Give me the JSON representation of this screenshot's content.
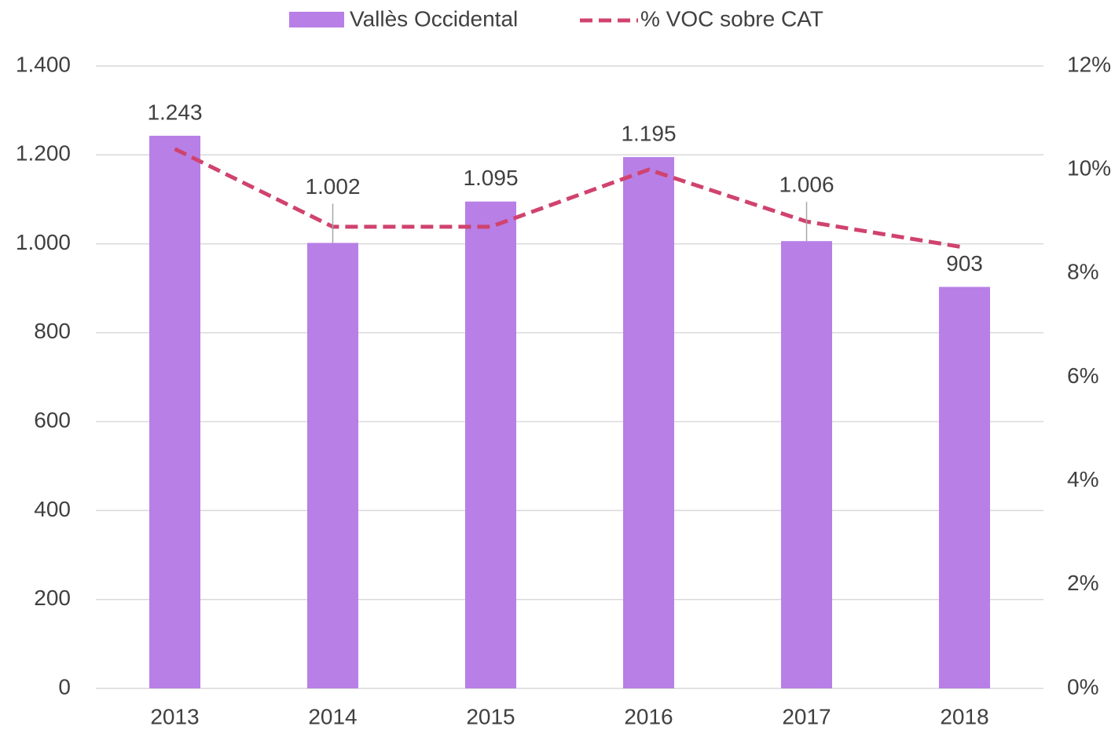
{
  "chart_data": {
    "type": "bar_line",
    "categories": [
      "2013",
      "2014",
      "2015",
      "2016",
      "2017",
      "2018"
    ],
    "series": [
      {
        "name": "Vallès Occidental",
        "color": "#b87fe6",
        "type": "bar",
        "axis": "y",
        "values": [
          1243,
          1002,
          1095,
          1195,
          1006,
          903
        ],
        "value_labels": [
          "1.243",
          "1.002",
          "1.095",
          "1.195",
          "1.006",
          "903"
        ]
      },
      {
        "name": "% VOC sobre CAT",
        "color": "#d0436e",
        "type": "line",
        "axis": "y2",
        "dashed": true,
        "values": [
          10.4,
          8.9,
          8.9,
          10.0,
          9.0,
          8.5
        ]
      }
    ],
    "ylim": [
      0,
      1400
    ],
    "yticks": [
      0,
      200,
      400,
      600,
      800,
      {
        "value": 1000,
        "label": "1.000"
      },
      {
        "value": 1200,
        "label": "1.200"
      },
      {
        "value": 1400,
        "label": "1.400"
      }
    ],
    "y2lim": [
      0,
      12
    ],
    "y2ticks": [
      {
        "value": 0,
        "label": "0%"
      },
      {
        "value": 2,
        "label": "2%"
      },
      {
        "value": 4,
        "label": "4%"
      },
      {
        "value": 6,
        "label": "6%"
      },
      {
        "value": 8,
        "label": "8%"
      },
      {
        "value": 10,
        "label": "10%"
      },
      {
        "value": 12,
        "label": "12%"
      }
    ],
    "grid": true,
    "legend": "top"
  }
}
